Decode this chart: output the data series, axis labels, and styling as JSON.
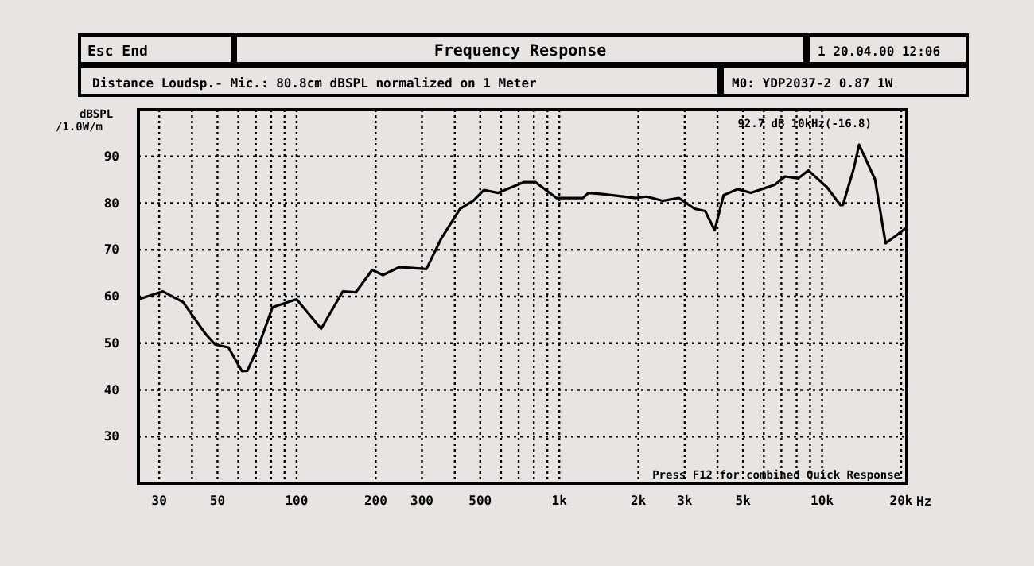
{
  "chart_data": {
    "type": "line",
    "title": "Frequency Response",
    "subtitle": "Distance Loudsp.- Mic.: 80.8cm dBSPL normalized on 1 Meter",
    "ylabel": "dBSPL /1.0W/m",
    "xlabel": "Hz",
    "annotations": [
      "Esc End",
      "1 20.04.00 12:06",
      "M0: YDP2037-2 0.87 1W",
      "92.7 dB 10kHz(-16.8)",
      "Press F12 for combined Quick Response"
    ],
    "xlim": [
      25,
      21000
    ],
    "ylim": [
      20,
      100
    ],
    "log": "x",
    "grid": true,
    "marker": "none",
    "line_style": "solid",
    "xticks": [
      {
        "value": 30,
        "label": "30"
      },
      {
        "value": 40,
        "label": null
      },
      {
        "value": 50,
        "label": "50"
      },
      {
        "value": 60,
        "label": null
      },
      {
        "value": 70,
        "label": null
      },
      {
        "value": 80,
        "label": null
      },
      {
        "value": 90,
        "label": null
      },
      {
        "value": 100,
        "label": "100"
      },
      {
        "value": 200,
        "label": "200"
      },
      {
        "value": 300,
        "label": "300"
      },
      {
        "value": 400,
        "label": null
      },
      {
        "value": 500,
        "label": "500"
      },
      {
        "value": 600,
        "label": null
      },
      {
        "value": 700,
        "label": null
      },
      {
        "value": 800,
        "label": null
      },
      {
        "value": 900,
        "label": null
      },
      {
        "value": 1000,
        "label": "1k"
      },
      {
        "value": 2000,
        "label": "2k"
      },
      {
        "value": 3000,
        "label": "3k"
      },
      {
        "value": 4000,
        "label": null
      },
      {
        "value": 5000,
        "label": "5k"
      },
      {
        "value": 6000,
        "label": null
      },
      {
        "value": 7000,
        "label": null
      },
      {
        "value": 8000,
        "label": null
      },
      {
        "value": 9000,
        "label": null
      },
      {
        "value": 10000,
        "label": "10k"
      },
      {
        "value": 20000,
        "label": "20k"
      }
    ],
    "yticks": [
      30,
      40,
      50,
      60,
      70,
      80,
      90
    ],
    "series": [
      {
        "color": "#000000",
        "x": [
          25,
          31,
          37,
          45,
          49,
          55,
          62,
          65,
          72,
          81,
          100,
          124,
          150,
          168,
          194,
          213,
          246,
          312,
          356,
          419,
          470,
          516,
          585,
          735,
          775,
          810,
          975,
          1230,
          1290,
          1490,
          1960,
          2150,
          2470,
          2850,
          3270,
          3590,
          3900,
          4220,
          4770,
          5360,
          6600,
          7240,
          8120,
          8860,
          10440,
          11730,
          12000,
          13200,
          13830,
          15900,
          17450,
          19200,
          21000
        ],
        "values": [
          59.4,
          61.1,
          58.8,
          52,
          49.7,
          49.1,
          44,
          44.1,
          49.7,
          57.7,
          59.4,
          53.1,
          61.1,
          60.9,
          65.7,
          64.6,
          66.3,
          65.9,
          72.5,
          78.8,
          80.5,
          82.8,
          82.2,
          84.5,
          84.5,
          84.5,
          81.1,
          81.1,
          82.2,
          81.9,
          81.1,
          81.4,
          80.5,
          81.1,
          78.8,
          78.3,
          74.2,
          81.7,
          83,
          82.2,
          83.9,
          85.7,
          85.3,
          87,
          83.4,
          79.6,
          79.6,
          87.4,
          92.5,
          85.1,
          71.4,
          73.1,
          74.8
        ]
      }
    ]
  }
}
